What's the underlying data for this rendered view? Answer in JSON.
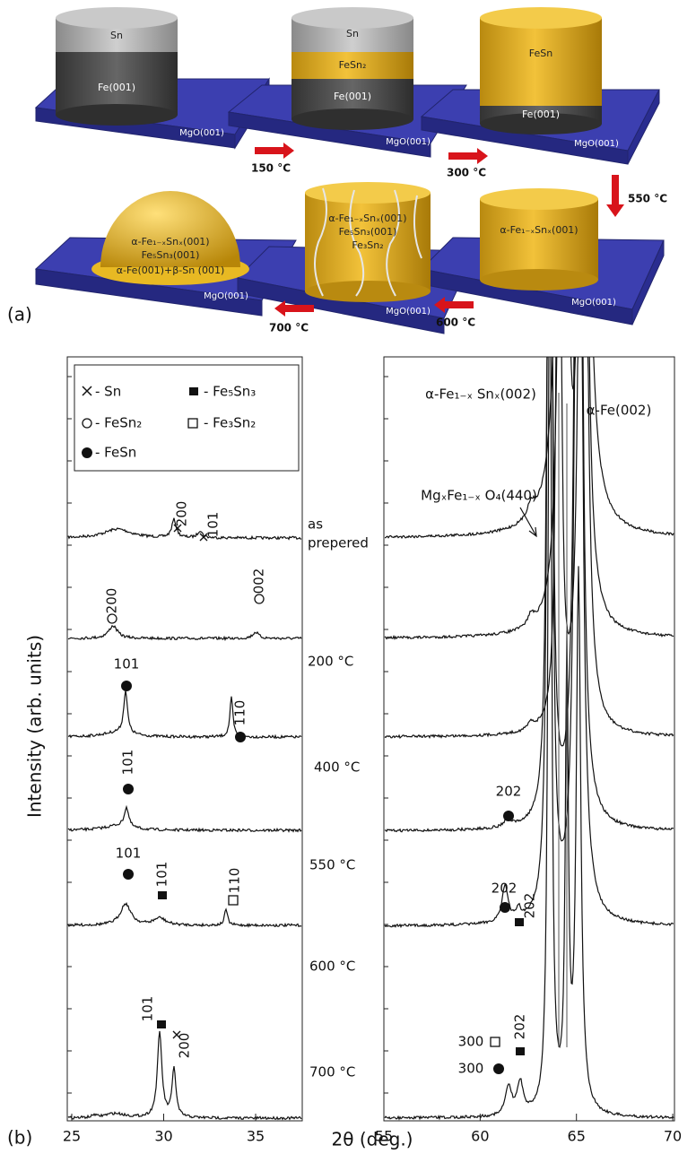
{
  "panel_a": {
    "label": "(a)",
    "top_row": [
      {
        "layers": [
          "Sn",
          "Fe(001)"
        ],
        "substrate": "MgO(001)"
      },
      {
        "layers": [
          "Sn",
          "FeSn₂",
          "Fe(001)"
        ],
        "substrate": "MgO(001)"
      },
      {
        "layers": [
          "FeSn",
          "Fe(001)"
        ],
        "substrate": "MgO(001)"
      }
    ],
    "bottom_row": [
      {
        "layers": [
          "α-Fe₁₋ₓSnₓ(001)",
          "Fe₅Sn₃(001)",
          "α-Fe(001)+β-Sn (001)"
        ],
        "substrate": "MgO(001)"
      },
      {
        "layers": [
          "α-Fe₁₋ₓSnₓ(001)",
          "Fe₅Sn₃(001)",
          "Fe₃Sn₂"
        ],
        "substrate": "MgO(001)"
      },
      {
        "layers": [
          "α-Fe₁₋ₓSnₓ(001)"
        ],
        "substrate": "MgO(001)"
      }
    ],
    "steps": [
      "150 °C",
      "300 °C",
      "550 °C",
      "600 °C",
      "700 °C"
    ]
  },
  "panel_b": {
    "label": "(b)",
    "y_label": "Intensity (arb. units)",
    "x_label": "2θ (deg.)",
    "left": {
      "xlim": [
        25,
        37.5
      ],
      "xticks": [
        25,
        30,
        35
      ]
    },
    "right": {
      "xlim": [
        55,
        70
      ],
      "xticks": [
        55,
        60,
        65,
        70
      ]
    },
    "legend": [
      "- Sn",
      "- FeSn₂",
      "- FeSn",
      "- Fe₅Sn₃",
      "- Fe₃Sn₂"
    ],
    "traces": [
      "as",
      "prepered",
      "200 °C",
      "400 °C",
      "550 °C",
      "600 °C",
      "700 °C"
    ],
    "left_peaks": [
      "200",
      "101",
      "200",
      "002",
      "101",
      "110",
      "101",
      "101",
      "101",
      "110",
      "101",
      "200"
    ],
    "right_labels": [
      "α-Fe₁₋ₓ Snₓ(002)",
      "α-Fe(002)",
      "MgₓFe₁₋ₓ O₄(440)",
      "202",
      "202",
      "202",
      "300",
      "300",
      "202"
    ]
  }
}
